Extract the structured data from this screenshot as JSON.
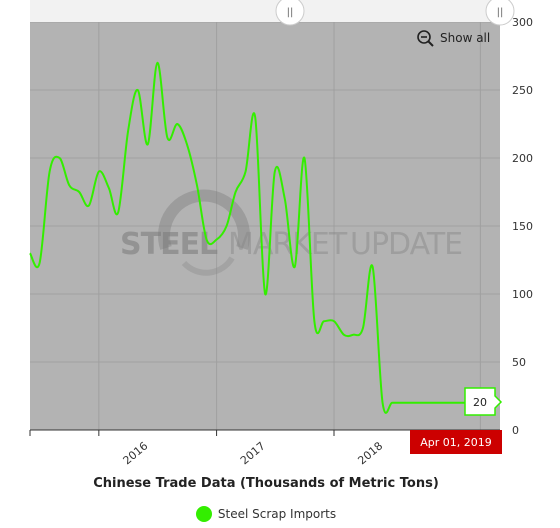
{
  "chart_data": {
    "type": "line",
    "title": "Chinese Trade Data (Thousands of Metric Tons)",
    "xlabel": "",
    "ylabel": "",
    "x_ticks": [
      "2016",
      "2017",
      "2018"
    ],
    "y_ticks": [
      0,
      50,
      100,
      150,
      200,
      250,
      300
    ],
    "ylim": [
      0,
      300
    ],
    "grid": true,
    "legend_placement": "bottom-center",
    "series": [
      {
        "name": "Steel Scrap Imports",
        "color": "#33ee00",
        "x": [
          "2015-06-01",
          "2015-07-01",
          "2015-08-01",
          "2015-09-01",
          "2015-10-01",
          "2015-11-01",
          "2015-12-01",
          "2016-01-01",
          "2016-02-01",
          "2016-03-01",
          "2016-04-01",
          "2016-05-01",
          "2016-06-01",
          "2016-07-01",
          "2016-08-01",
          "2016-09-01",
          "2016-10-01",
          "2016-11-01",
          "2016-12-01",
          "2017-01-01",
          "2017-02-01",
          "2017-03-01",
          "2017-04-01",
          "2017-05-01",
          "2017-06-01",
          "2017-07-01",
          "2017-08-01",
          "2017-09-01",
          "2017-10-01",
          "2017-11-01",
          "2017-12-01",
          "2018-01-01",
          "2018-02-01",
          "2018-03-01",
          "2018-04-01",
          "2018-05-01",
          "2018-06-01",
          "2018-07-01",
          "2018-08-01",
          "2018-09-01",
          "2018-10-01",
          "2018-11-01",
          "2018-12-01",
          "2019-01-01",
          "2019-02-01",
          "2019-03-01",
          "2019-04-01"
        ],
        "values": [
          130,
          123,
          190,
          200,
          180,
          175,
          165,
          190,
          178,
          160,
          220,
          250,
          210,
          270,
          215,
          225,
          210,
          180,
          140,
          140,
          150,
          175,
          190,
          230,
          100,
          190,
          170,
          120,
          200,
          80,
          80,
          80,
          70,
          70,
          75,
          120,
          20,
          20,
          20,
          20,
          20,
          20,
          20,
          20,
          20,
          20,
          20
        ]
      }
    ],
    "navigator_handle_labels": [
      "||",
      "||"
    ],
    "last_value_label": "20",
    "date_label": "Apr 01, 2019",
    "watermark": {
      "part1": "STEEL",
      "part2": "MARKET",
      "part3": "UPDATE"
    },
    "show_all_label": "Show all"
  },
  "colors": {
    "plot_background": "#b3b3b3",
    "line": "#33ee00",
    "date_label_bg": "#cc0000",
    "grid": "#a0a0a0"
  },
  "icons": {
    "zoom_out": "zoom-out-icon"
  }
}
